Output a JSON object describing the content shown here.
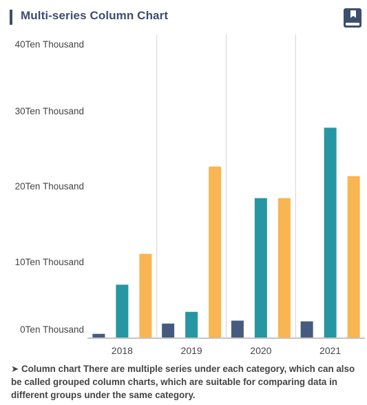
{
  "header": {
    "title": "Multi-series Column Chart",
    "book_icon": "book-icon",
    "accent_color": "#3d4d6e"
  },
  "chart_data": {
    "type": "bar",
    "categories": [
      "2018",
      "2019",
      "2020",
      "2021"
    ],
    "series": [
      {
        "color": "#455a7e",
        "values": [
          0.5,
          1.9,
          2.3,
          2.2
        ]
      },
      {
        "color": "#2796a3",
        "values": [
          7.2,
          3.5,
          19.0,
          28.6
        ]
      },
      {
        "color": "#f8b551",
        "values": [
          11.4,
          23.3,
          19.0,
          22.0
        ]
      }
    ],
    "y_ticks": [
      "0Ten Thousand",
      "10Ten Thousand",
      "20Ten Thousand",
      "30Ten Thousand",
      "40Ten Thousand"
    ],
    "ylim": [
      0,
      40
    ],
    "grid": "vertical category separators",
    "legend": "none"
  },
  "caption": {
    "text": "➤ Column chart There are multiple series under each category, which can also be called grouped column charts, which are suitable for comparing data in different groups under the same category."
  }
}
